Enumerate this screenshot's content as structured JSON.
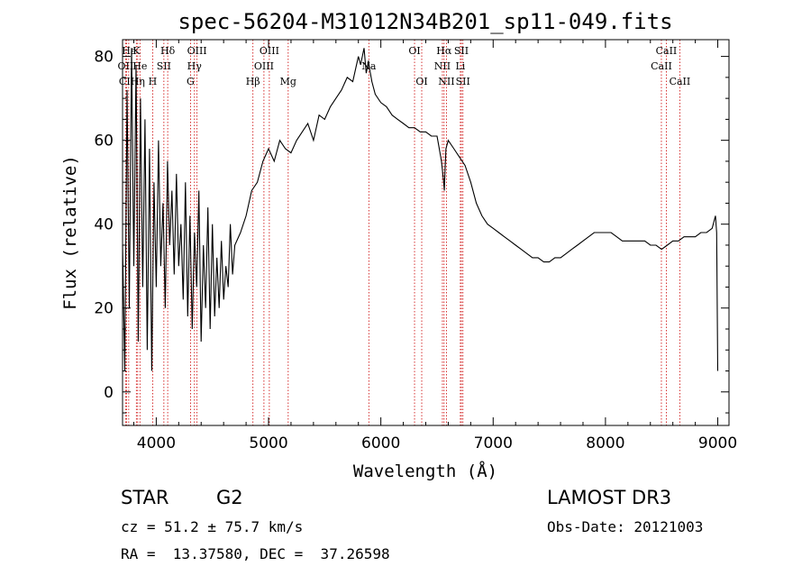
{
  "chart_data": {
    "type": "line",
    "title": "spec-56204-M31012N34B201_sp11-049.fits",
    "xlabel": "Wavelength (Å)",
    "ylabel": "Flux (relative)",
    "xlim": [
      3700,
      9100
    ],
    "ylim": [
      -8,
      84
    ],
    "x_ticks": [
      4000,
      5000,
      6000,
      7000,
      8000,
      9000
    ],
    "y_ticks": [
      0,
      20,
      40,
      60,
      80
    ],
    "grid": false,
    "line_color": "#000000",
    "marker_color": "#cc0000",
    "series": [
      {
        "name": "spectrum",
        "x": [
          3700,
          3720,
          3740,
          3760,
          3780,
          3800,
          3820,
          3840,
          3860,
          3880,
          3900,
          3920,
          3940,
          3960,
          3980,
          4000,
          4020,
          4040,
          4060,
          4080,
          4100,
          4120,
          4140,
          4160,
          4180,
          4200,
          4220,
          4240,
          4260,
          4280,
          4300,
          4320,
          4340,
          4360,
          4380,
          4400,
          4420,
          4440,
          4460,
          4480,
          4500,
          4520,
          4540,
          4560,
          4580,
          4600,
          4620,
          4640,
          4660,
          4680,
          4700,
          4750,
          4800,
          4850,
          4900,
          4950,
          5000,
          5050,
          5100,
          5150,
          5200,
          5250,
          5300,
          5350,
          5400,
          5450,
          5500,
          5550,
          5600,
          5650,
          5700,
          5750,
          5800,
          5820,
          5850,
          5870,
          5890,
          5900,
          5920,
          5950,
          6000,
          6050,
          6100,
          6150,
          6200,
          6250,
          6300,
          6350,
          6400,
          6450,
          6500,
          6520,
          6540,
          6560,
          6565,
          6570,
          6580,
          6600,
          6650,
          6700,
          6750,
          6800,
          6850,
          6900,
          6950,
          7000,
          7050,
          7100,
          7150,
          7200,
          7250,
          7300,
          7350,
          7400,
          7450,
          7500,
          7550,
          7600,
          7650,
          7700,
          7750,
          7800,
          7850,
          7900,
          7950,
          8000,
          8050,
          8100,
          8150,
          8200,
          8250,
          8300,
          8350,
          8400,
          8450,
          8500,
          8550,
          8600,
          8650,
          8700,
          8750,
          8800,
          8850,
          8900,
          8950,
          8980,
          8990,
          9000
        ],
        "values": [
          35,
          5,
          72,
          20,
          82,
          30,
          78,
          12,
          70,
          25,
          65,
          10,
          58,
          5,
          50,
          25,
          60,
          30,
          45,
          20,
          55,
          35,
          48,
          28,
          52,
          30,
          40,
          22,
          50,
          18,
          42,
          15,
          38,
          25,
          48,
          12,
          35,
          20,
          44,
          15,
          40,
          18,
          32,
          20,
          36,
          22,
          30,
          25,
          40,
          28,
          35,
          38,
          42,
          48,
          50,
          55,
          58,
          55,
          60,
          58,
          57,
          60,
          62,
          64,
          60,
          66,
          65,
          68,
          70,
          72,
          75,
          74,
          80,
          78,
          82,
          76,
          79,
          77,
          74,
          71,
          69,
          68,
          66,
          65,
          64,
          63,
          63,
          62,
          62,
          61,
          61,
          58,
          55,
          50,
          48,
          52,
          58,
          60,
          58,
          56,
          54,
          50,
          45,
          42,
          40,
          39,
          38,
          37,
          36,
          35,
          34,
          33,
          32,
          32,
          31,
          31,
          32,
          32,
          33,
          34,
          35,
          36,
          37,
          38,
          38,
          38,
          38,
          37,
          36,
          36,
          36,
          36,
          36,
          35,
          35,
          34,
          35,
          36,
          36,
          37,
          37,
          37,
          38,
          38,
          39,
          42,
          38,
          5
        ]
      }
    ],
    "lines": [
      {
        "label": "Hε",
        "wave": 3755,
        "row": 1
      },
      {
        "label": "OII",
        "wave": 3727,
        "row": 2
      },
      {
        "label": "CII",
        "wave": 3736,
        "row": 3
      },
      {
        "label": "K",
        "wave": 3823,
        "row": 1
      },
      {
        "label": "He",
        "wave": 3855,
        "row": 2
      },
      {
        "label": "Hη",
        "wave": 3835,
        "row": 3
      },
      {
        "label": "Hδ",
        "wave": 4102,
        "row": 1
      },
      {
        "label": "SII",
        "wave": 4068,
        "row": 2
      },
      {
        "label": "H",
        "wave": 3968,
        "row": 3
      },
      {
        "label": "OIII",
        "wave": 4363,
        "row": 1
      },
      {
        "label": "Hγ",
        "wave": 4340,
        "row": 2
      },
      {
        "label": "G",
        "wave": 4305,
        "row": 3
      },
      {
        "label": "Hβ",
        "wave": 4861,
        "row": 3
      },
      {
        "label": "OIII",
        "wave": 5007,
        "row": 1
      },
      {
        "label": "OIII",
        "wave": 4959,
        "row": 2
      },
      {
        "label": "Mg",
        "wave": 5175,
        "row": 3
      },
      {
        "label": "Na",
        "wave": 5893,
        "row": 2
      },
      {
        "label": "OI",
        "wave": 6300,
        "row": 1
      },
      {
        "label": "OI",
        "wave": 6364,
        "row": 3
      },
      {
        "label": "Hα",
        "wave": 6563,
        "row": 1
      },
      {
        "label": "NII",
        "wave": 6548,
        "row": 2
      },
      {
        "label": "NII",
        "wave": 6584,
        "row": 3
      },
      {
        "label": "SII",
        "wave": 6717,
        "row": 1
      },
      {
        "label": "Li",
        "wave": 6708,
        "row": 2
      },
      {
        "label": "SII",
        "wave": 6731,
        "row": 3
      },
      {
        "label": "CaII",
        "wave": 8542,
        "row": 1
      },
      {
        "label": "CaII",
        "wave": 8498,
        "row": 2
      },
      {
        "label": "CaII",
        "wave": 8662,
        "row": 3
      }
    ]
  },
  "info": {
    "class": "STAR",
    "subclass": "G2",
    "survey": "LAMOST DR3",
    "cz": "cz = 51.2 ± 75.7 km/s",
    "obs_date": "Obs-Date: 20121003",
    "coords": "RA =  13.37580, DEC =  37.26598"
  }
}
